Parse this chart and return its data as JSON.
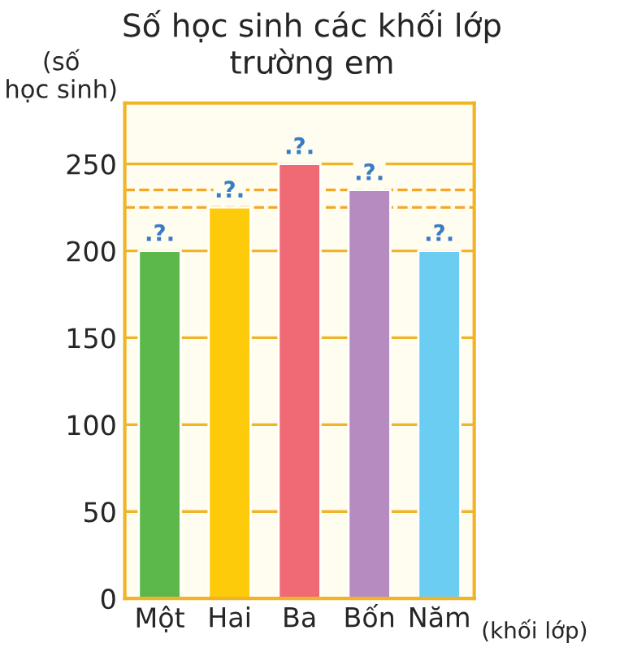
{
  "chart_data": {
    "type": "bar",
    "title": "Số học sinh các khối lớp\ntrường em",
    "ylabel": "(số\nhọc sinh)",
    "xlabel": "(khối lớp)",
    "categories": [
      "Một",
      "Hai",
      "Ba",
      "Bốn",
      "Năm"
    ],
    "values": [
      200,
      225,
      250,
      235,
      200
    ],
    "colors": [
      "#5cb84a",
      "#fecb0a",
      "#f06a75",
      "#b68bc0",
      "#6ccdf3"
    ],
    "value_labels": [
      ".?.",
      ".?.",
      ".?.",
      ".?.",
      ".?."
    ],
    "ylim": [
      0,
      285
    ],
    "yticks": [
      0,
      50,
      100,
      150,
      200,
      250
    ],
    "grid": "y",
    "ref_lines": [
      {
        "axis": "y",
        "value": 225,
        "color": "#f5a623",
        "line_style": "dashed"
      },
      {
        "axis": "y",
        "value": 235,
        "color": "#f5a623",
        "line_style": "dashed"
      }
    ]
  }
}
